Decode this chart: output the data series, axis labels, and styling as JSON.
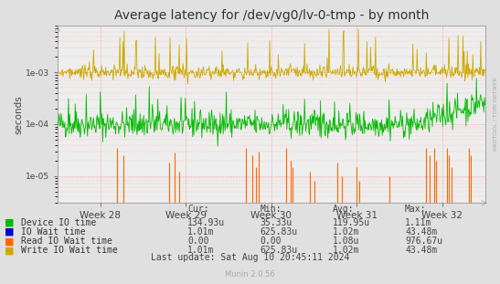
{
  "title": "Average latency for /dev/vg0/lv-0-tmp - by month",
  "ylabel": "seconds",
  "xlabel_ticks": [
    "Week 28",
    "Week 29",
    "Week 30",
    "Week 31",
    "Week 32"
  ],
  "background_color": "#e0e0e0",
  "plot_bg_color": "#eeeeee",
  "grid_color": "#ff8080",
  "green_color": "#00bb00",
  "orange_color": "#ff6600",
  "yellow_color": "#ccaa00",
  "blue_color": "#0000cc",
  "title_fontsize": 10,
  "watermark": "RRDTOOL / TOBI OETIKER",
  "munin_version": "Munin 2.0.56",
  "last_update": "Last update: Sat Aug 10 20:45:11 2024",
  "legend_labels": [
    "Device IO time",
    "IO Wait time",
    "Read IO Wait time",
    "Write IO Wait time"
  ],
  "legend_colors": [
    "#00bb00",
    "#0000cc",
    "#ff6600",
    "#ccaa00"
  ],
  "col_headers": [
    "Cur:",
    "Min:",
    "Avg:",
    "Max:"
  ],
  "cur_vals": [
    "134.93u",
    "1.01m",
    "0.00",
    "1.01m"
  ],
  "min_vals": [
    "35.33u",
    "625.83u",
    "0.00",
    "625.83u"
  ],
  "avg_vals": [
    "119.95u",
    "1.02m",
    "1.08u",
    "1.02m"
  ],
  "max_vals": [
    "1.11m",
    "43.48m",
    "976.67u",
    "43.48m"
  ],
  "n_points": 700,
  "seed": 42
}
